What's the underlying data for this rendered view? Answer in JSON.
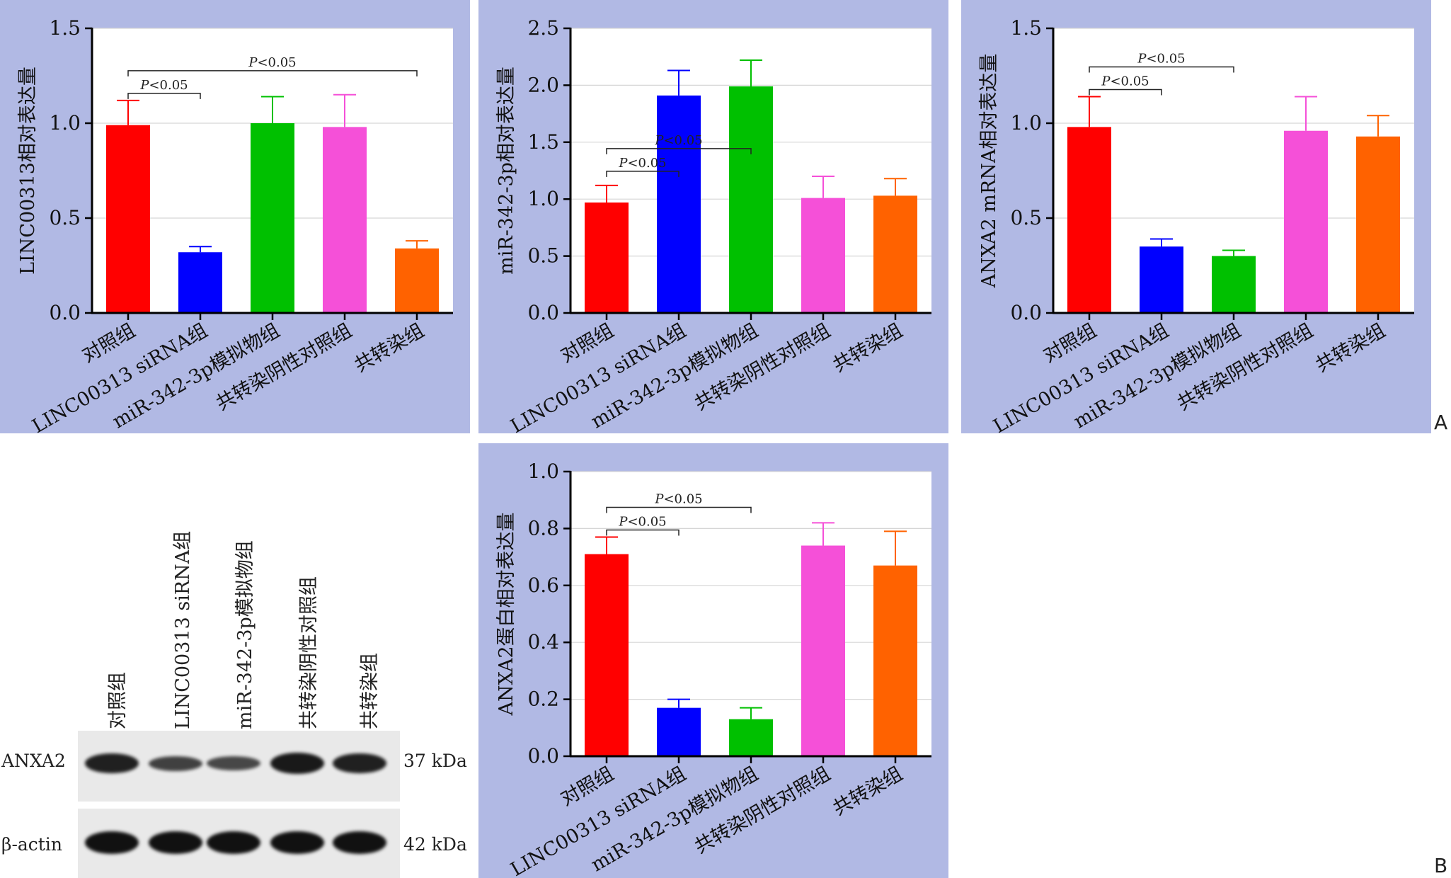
{
  "chart_data": [
    {
      "type": "bar",
      "ylabel": "LINC00313相对表达量",
      "ylim": [
        0,
        1.5
      ],
      "yticks": [
        0.0,
        0.5,
        1.0,
        1.5
      ],
      "categories": [
        "对照组",
        "LINC00313 siRNA组",
        "miR-342-3p模拟物组",
        "共转染阴性对照组",
        "共转染组"
      ],
      "values": [
        0.99,
        0.32,
        1.0,
        0.98,
        0.34
      ],
      "errors": [
        0.13,
        0.03,
        0.14,
        0.17,
        0.04
      ],
      "colors": [
        "#ff0000",
        "#0000ff",
        "#00c000",
        "#f550d8",
        "#ff6200"
      ],
      "annotations": [
        {
          "text": "P<0.05",
          "from": 0,
          "to": 1
        },
        {
          "text": "P<0.05",
          "from": 0,
          "to": 4
        }
      ],
      "grid": true
    },
    {
      "type": "bar",
      "ylabel": "miR-342-3p相对表达量",
      "ylim": [
        0,
        2.5
      ],
      "yticks": [
        0.0,
        0.5,
        1.0,
        1.5,
        2.0,
        2.5
      ],
      "categories": [
        "对照组",
        "LINC00313 siRNA组",
        "miR-342-3p模拟物组",
        "共转染阴性对照组",
        "共转染组"
      ],
      "values": [
        0.97,
        1.91,
        1.99,
        1.01,
        1.03
      ],
      "errors": [
        0.15,
        0.22,
        0.23,
        0.19,
        0.15
      ],
      "colors": [
        "#ff0000",
        "#0000ff",
        "#00c000",
        "#f550d8",
        "#ff6200"
      ],
      "annotations": [
        {
          "text": "P<0.05",
          "from": 0,
          "to": 1
        },
        {
          "text": "P<0.05",
          "from": 0,
          "to": 2
        }
      ],
      "grid": true
    },
    {
      "type": "bar",
      "ylabel": "ANXA2 mRNA相对表达量",
      "ylim": [
        0,
        1.5
      ],
      "yticks": [
        0.0,
        0.5,
        1.0,
        1.5
      ],
      "categories": [
        "对照组",
        "LINC00313 siRNA组",
        "miR-342-3p模拟物组",
        "共转染阴性对照组",
        "共转染组"
      ],
      "values": [
        0.98,
        0.35,
        0.3,
        0.96,
        0.93
      ],
      "errors": [
        0.16,
        0.04,
        0.03,
        0.18,
        0.11
      ],
      "colors": [
        "#ff0000",
        "#0000ff",
        "#00c000",
        "#f550d8",
        "#ff6200"
      ],
      "annotations": [
        {
          "text": "P<0.05",
          "from": 0,
          "to": 1
        },
        {
          "text": "P<0.05",
          "from": 0,
          "to": 2
        }
      ],
      "grid": true
    },
    {
      "type": "bar",
      "ylabel": "ANXA2蛋白相对表达量",
      "ylim": [
        0,
        1.0
      ],
      "yticks": [
        0.0,
        0.2,
        0.4,
        0.6,
        0.8,
        1.0
      ],
      "categories": [
        "对照组",
        "LINC00313 siRNA组",
        "miR-342-3p模拟物组",
        "共转染阴性对照组",
        "共转染组"
      ],
      "values": [
        0.71,
        0.17,
        0.13,
        0.74,
        0.67
      ],
      "errors": [
        0.06,
        0.03,
        0.04,
        0.08,
        0.12
      ],
      "colors": [
        "#ff0000",
        "#0000ff",
        "#00c000",
        "#f550d8",
        "#ff6200"
      ],
      "annotations": [
        {
          "text": "P<0.05",
          "from": 0,
          "to": 1
        },
        {
          "text": "P<0.05",
          "from": 0,
          "to": 2
        }
      ],
      "grid": true
    }
  ],
  "western_blot": {
    "lanes": [
      "对照组",
      "LINC00313 siRNA组",
      "miR-342-3p模拟物组",
      "共转染阴性对照组",
      "共转染组"
    ],
    "rows": [
      {
        "protein": "ANXA2",
        "size": "37 kDa",
        "intensities": [
          0.85,
          0.5,
          0.45,
          0.9,
          0.85
        ]
      },
      {
        "protein": "β-actin",
        "size": "42 kDa",
        "intensities": [
          1.0,
          1.0,
          1.0,
          1.0,
          1.0
        ]
      }
    ]
  },
  "panel_letters": {
    "a": "A",
    "b": "B"
  }
}
